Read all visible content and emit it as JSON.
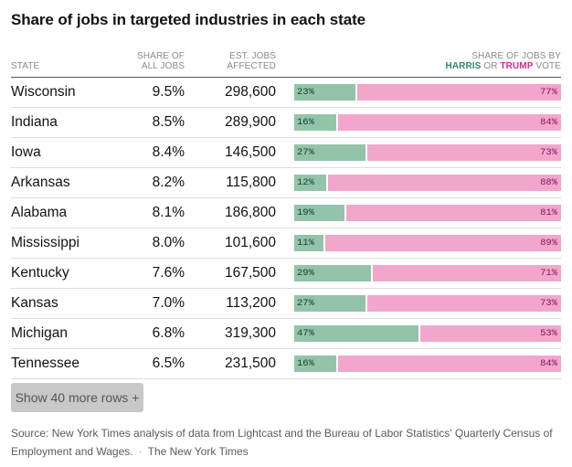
{
  "title": "Share of jobs in targeted industries in each state",
  "headers": {
    "state": "STATE",
    "share_line1": "SHARE OF",
    "share_line2": "ALL JOBS",
    "jobs_line1": "EST. JOBS",
    "jobs_line2": "AFFECTED",
    "vote_line1": "SHARE OF JOBS BY",
    "vote_harris": "HARRIS",
    "vote_or": " OR ",
    "vote_trump": "TRUMP",
    "vote_suffix": " VOTE"
  },
  "colors": {
    "harris": "#93c4aa",
    "trump": "#f2a6cc",
    "harris_text": "#2e8a62",
    "trump_text": "#d02d8c"
  },
  "chart_data": {
    "type": "table",
    "columns": [
      "State",
      "Share of all jobs",
      "Est. jobs affected",
      "Harris share",
      "Trump share"
    ],
    "rows": [
      {
        "state": "Wisconsin",
        "share": "9.5%",
        "jobs": "298,600",
        "harris": 23,
        "trump": 77,
        "harris_label": "23%",
        "trump_label": "77%"
      },
      {
        "state": "Indiana",
        "share": "8.5%",
        "jobs": "289,900",
        "harris": 16,
        "trump": 84,
        "harris_label": "16%",
        "trump_label": "84%"
      },
      {
        "state": "Iowa",
        "share": "8.4%",
        "jobs": "146,500",
        "harris": 27,
        "trump": 73,
        "harris_label": "27%",
        "trump_label": "73%"
      },
      {
        "state": "Arkansas",
        "share": "8.2%",
        "jobs": "115,800",
        "harris": 12,
        "trump": 88,
        "harris_label": "12%",
        "trump_label": "88%"
      },
      {
        "state": "Alabama",
        "share": "8.1%",
        "jobs": "186,800",
        "harris": 19,
        "trump": 81,
        "harris_label": "19%",
        "trump_label": "81%"
      },
      {
        "state": "Mississippi",
        "share": "8.0%",
        "jobs": "101,600",
        "harris": 11,
        "trump": 89,
        "harris_label": "11%",
        "trump_label": "89%"
      },
      {
        "state": "Kentucky",
        "share": "7.6%",
        "jobs": "167,500",
        "harris": 29,
        "trump": 71,
        "harris_label": "29%",
        "trump_label": "71%"
      },
      {
        "state": "Kansas",
        "share": "7.0%",
        "jobs": "113,200",
        "harris": 27,
        "trump": 73,
        "harris_label": "27%",
        "trump_label": "73%"
      },
      {
        "state": "Michigan",
        "share": "6.8%",
        "jobs": "319,300",
        "harris": 47,
        "trump": 53,
        "harris_label": "47%",
        "trump_label": "53%"
      },
      {
        "state": "Tennessee",
        "share": "6.5%",
        "jobs": "231,500",
        "harris": 16,
        "trump": 84,
        "harris_label": "16%",
        "trump_label": "84%"
      }
    ]
  },
  "more_button": "Show 40 more rows +",
  "source": {
    "text": "Source: New York Times analysis of data from Lightcast and the Bureau of Labor Statistics' Quarterly Census of Employment and Wages.",
    "credit": "The New York Times"
  }
}
